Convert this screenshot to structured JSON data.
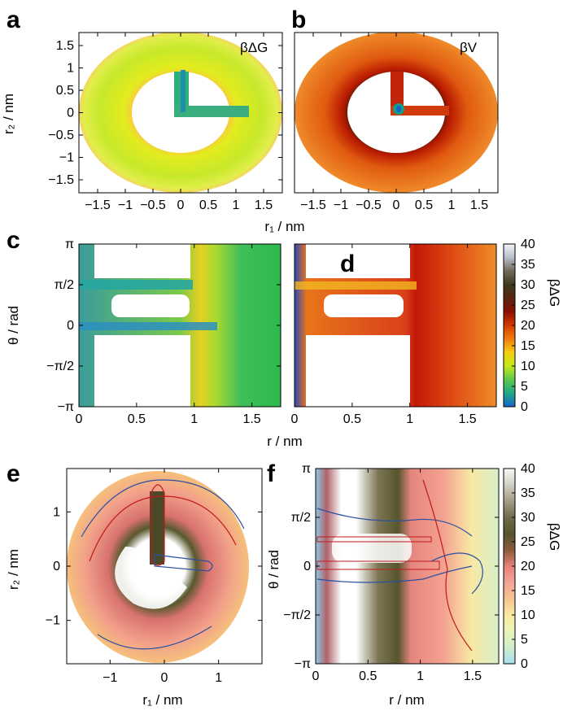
{
  "panels": {
    "a": {
      "letter": "a",
      "label": "βΔG"
    },
    "b": {
      "letter": "b",
      "label": "βV"
    },
    "c": {
      "letter": "c"
    },
    "d": {
      "letter": "d"
    },
    "e": {
      "letter": "e"
    },
    "f": {
      "letter": "f"
    }
  },
  "axes": {
    "r1_nm": "r₁ / nm",
    "r2_nm": "r₂ / nm",
    "theta_rad": "θ / rad",
    "r_nm": "r / nm"
  },
  "ticks": {
    "ab_x": [
      "−1.5",
      "−1",
      "−0.5",
      "0",
      "0.5",
      "1",
      "1.5"
    ],
    "ab_y": [
      "1.5",
      "1",
      "0.5",
      "0",
      "−0.5",
      "−1",
      "−1.5"
    ],
    "c_x": [
      "0",
      "0.5",
      "1",
      "1.5"
    ],
    "d_x": [
      "0",
      "0.5",
      "1",
      "1.5"
    ],
    "theta": [
      "π",
      "π/2",
      "0",
      "−π/2",
      "−π"
    ],
    "e_x": [
      "−1",
      "0",
      "1"
    ],
    "e_y": [
      "1",
      "0",
      "−1"
    ],
    "f_x": [
      "0",
      "0.5",
      "1",
      "1.5"
    ]
  },
  "colorbars": {
    "cd": {
      "label": "βΔG",
      "ticks": [
        "40",
        "35",
        "30",
        "25",
        "20",
        "15",
        "10",
        "5",
        "0"
      ],
      "colors": [
        "#f2f4fb",
        "#b8bccb",
        "#6e6a58",
        "#3c3a1f",
        "#5a2410",
        "#8c0f00",
        "#d63b00",
        "#f07d10",
        "#f5cf10",
        "#c2e818",
        "#5cc84c",
        "#1ea889",
        "#1765c8"
      ]
    },
    "f": {
      "label": "βΔG",
      "ticks": [
        "40",
        "35",
        "30",
        "25",
        "20",
        "15",
        "10",
        "5",
        "0"
      ],
      "colors": [
        "#f8f8f5",
        "#d2d0c6",
        "#a39d85",
        "#6e6c4a",
        "#55552e",
        "#8a5a3a",
        "#e6827a",
        "#f3a39a",
        "#f6c48e",
        "#f8e9a0",
        "#eaf5b8",
        "#d0eccb",
        "#a8dff0"
      ]
    }
  },
  "chart_data": [
    {
      "panel": "a",
      "type": "heatmap",
      "title": "βΔG",
      "xlabel": "r₁ / nm",
      "ylabel": "r₂ / nm",
      "xlim": [
        -1.85,
        1.85
      ],
      "ylim": [
        -1.85,
        1.85
      ],
      "xticks": [
        -1.5,
        -1,
        -0.5,
        0,
        0.5,
        1,
        1.5
      ],
      "yticks": [
        -1.5,
        -1,
        -0.5,
        0,
        0.5,
        1,
        1.5
      ],
      "domain": "annulus 0.85–1.75 nm plus channel",
      "colormap": "cd"
    },
    {
      "panel": "b",
      "type": "heatmap",
      "title": "βV",
      "xlabel": "r₁ / nm",
      "xlim": [
        -1.85,
        1.85
      ],
      "ylim": [
        -1.85,
        1.85
      ],
      "xticks": [
        -1.5,
        -1,
        -0.5,
        0,
        0.5,
        1,
        1.5
      ],
      "colormap": "cd"
    },
    {
      "panel": "c",
      "type": "heatmap",
      "xlabel": "r / nm",
      "ylabel": "θ / rad",
      "xlim": [
        0,
        1.75
      ],
      "ylim": [
        -3.1416,
        3.1416
      ],
      "xticks": [
        0,
        0.5,
        1,
        1.5
      ],
      "colormap": "cd"
    },
    {
      "panel": "d",
      "type": "heatmap",
      "xlabel": "r / nm",
      "xlim": [
        0,
        1.75
      ],
      "ylim": [
        -3.1416,
        3.1416
      ],
      "xticks": [
        0,
        0.5,
        1,
        1.5
      ],
      "colorbar": {
        "label": "βΔG",
        "range": [
          0,
          40
        ],
        "ticks": [
          0,
          5,
          10,
          15,
          20,
          25,
          30,
          35,
          40
        ]
      }
    },
    {
      "panel": "e",
      "type": "heatmap",
      "xlabel": "r₁ / nm",
      "ylabel": "r₂ / nm",
      "xlim": [
        -1.8,
        1.8
      ],
      "ylim": [
        -1.8,
        1.8
      ],
      "xticks": [
        -1,
        0,
        1
      ],
      "yticks": [
        -1,
        0,
        1
      ],
      "overlay": "contours (red and blue)",
      "colormap": "f"
    },
    {
      "panel": "f",
      "type": "heatmap",
      "xlabel": "r / nm",
      "ylabel": "θ / rad",
      "xlim": [
        0,
        1.75
      ],
      "ylim": [
        -3.1416,
        3.1416
      ],
      "xticks": [
        0,
        0.5,
        1,
        1.5
      ],
      "overlay": "contours (red and blue)",
      "colorbar": {
        "label": "βΔG",
        "range": [
          0,
          40
        ],
        "ticks": [
          0,
          5,
          10,
          15,
          20,
          25,
          30,
          35,
          40
        ]
      }
    }
  ]
}
